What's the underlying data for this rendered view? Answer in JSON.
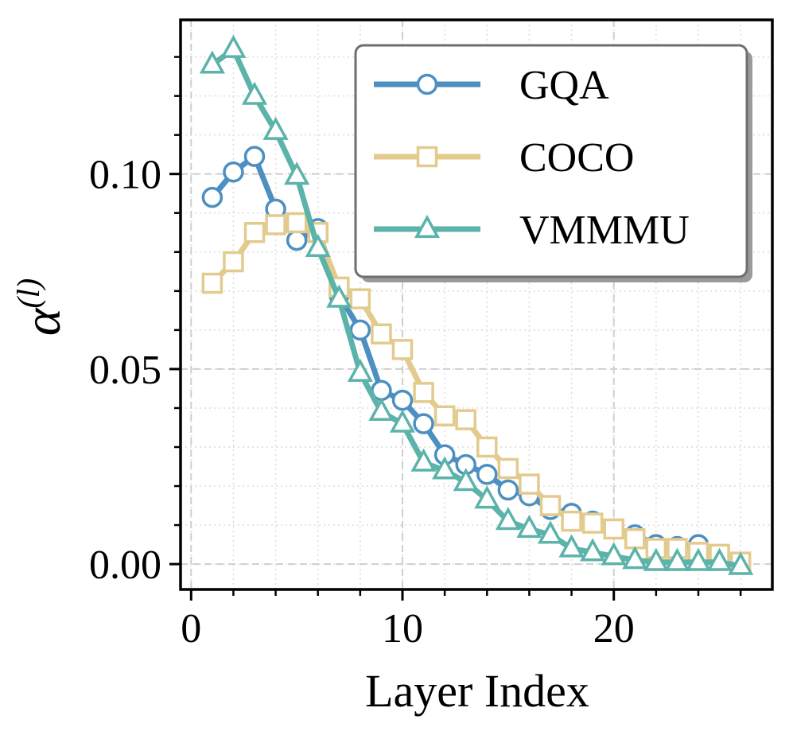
{
  "chart_data": {
    "type": "line",
    "title": "",
    "xlabel": "Layer Index",
    "ylabel_base": "α",
    "ylabel_sup": "(l)",
    "xlim": [
      -0.5,
      27.5
    ],
    "ylim": [
      -0.0065,
      0.1395
    ],
    "xticks": [
      0,
      10,
      20
    ],
    "xtick_labels": [
      "0",
      "10",
      "20"
    ],
    "yticks": [
      0.0,
      0.05,
      0.1
    ],
    "ytick_labels": [
      "0.00",
      "0.05",
      "0.10"
    ],
    "grid": true,
    "legend_position": "top-right",
    "series": [
      {
        "name": "GQA",
        "color": "#4C8FC0",
        "marker": "circle",
        "x": [
          1,
          2,
          3,
          4,
          5,
          6,
          7,
          8,
          9,
          10,
          11,
          12,
          13,
          14,
          15,
          16,
          17,
          18,
          19,
          20,
          21,
          22,
          23,
          24,
          25,
          26
        ],
        "y": [
          0.094,
          0.1005,
          0.1045,
          0.091,
          0.083,
          0.086,
          0.069,
          0.06,
          0.0445,
          0.042,
          0.036,
          0.028,
          0.0255,
          0.023,
          0.019,
          0.0175,
          0.014,
          0.013,
          0.011,
          0.009,
          0.0075,
          0.005,
          0.0045,
          0.005,
          0.002,
          0.0005
        ]
      },
      {
        "name": "COCO",
        "color": "#E3CB8E",
        "marker": "square",
        "x": [
          1,
          2,
          3,
          4,
          5,
          6,
          7,
          8,
          9,
          10,
          11,
          12,
          13,
          14,
          15,
          16,
          17,
          18,
          19,
          20,
          21,
          22,
          23,
          24,
          25,
          26
        ],
        "y": [
          0.072,
          0.0775,
          0.085,
          0.087,
          0.0875,
          0.085,
          0.071,
          0.068,
          0.059,
          0.055,
          0.044,
          0.038,
          0.037,
          0.03,
          0.0245,
          0.0205,
          0.015,
          0.011,
          0.0105,
          0.009,
          0.0065,
          0.004,
          0.004,
          0.003,
          0.0025,
          0.0005
        ]
      },
      {
        "name": "VMMMU",
        "color": "#5BB3AA",
        "marker": "triangle",
        "x": [
          1,
          2,
          3,
          4,
          5,
          6,
          7,
          8,
          9,
          10,
          11,
          12,
          13,
          14,
          15,
          16,
          17,
          18,
          19,
          20,
          21,
          22,
          23,
          24,
          25,
          26
        ],
        "y": [
          0.128,
          0.132,
          0.12,
          0.111,
          0.0995,
          0.081,
          0.068,
          0.049,
          0.039,
          0.036,
          0.026,
          0.024,
          0.021,
          0.0165,
          0.011,
          0.009,
          0.0075,
          0.004,
          0.003,
          0.002,
          0.001,
          0.0005,
          0.0005,
          0.0005,
          0.0005,
          -0.0005
        ]
      }
    ]
  }
}
